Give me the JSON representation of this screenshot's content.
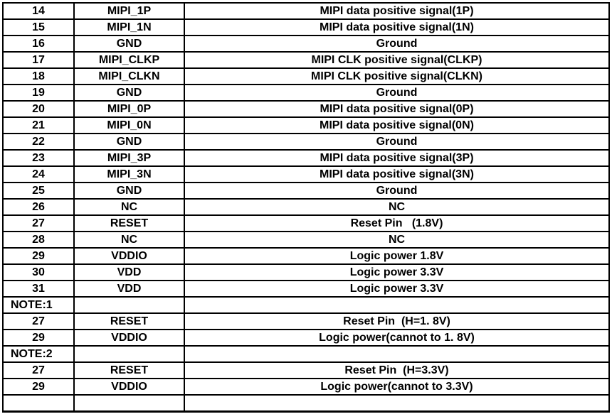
{
  "colors": {
    "text": "#000000",
    "border": "#000000",
    "background": "#ffffff"
  },
  "table": {
    "rows": [
      {
        "pin": "14",
        "signal": "MIPI_1P",
        "desc": "MIPI data positive signal(1P)"
      },
      {
        "pin": "15",
        "signal": "MIPI_1N",
        "desc": "MIPI data positive signal(1N)"
      },
      {
        "pin": "16",
        "signal": "GND",
        "desc": "Ground"
      },
      {
        "pin": "17",
        "signal": "MIPI_CLKP",
        "desc": "MIPI CLK positive signal(CLKP)"
      },
      {
        "pin": "18",
        "signal": "MIPI_CLKN",
        "desc": "MIPI CLK positive signal(CLKN)"
      },
      {
        "pin": "19",
        "signal": "GND",
        "desc": "Ground"
      },
      {
        "pin": "20",
        "signal": "MIPI_0P",
        "desc": "MIPI data positive signal(0P)"
      },
      {
        "pin": "21",
        "signal": "MIPI_0N",
        "desc": "MIPI data positive signal(0N)"
      },
      {
        "pin": "22",
        "signal": "GND",
        "desc": "Ground"
      },
      {
        "pin": "23",
        "signal": "MIPI_3P",
        "desc": "MIPI data positive signal(3P)"
      },
      {
        "pin": "24",
        "signal": "MIPI_3N",
        "desc": "MIPI data positive signal(3N)"
      },
      {
        "pin": "25",
        "signal": "GND",
        "desc": "Ground"
      },
      {
        "pin": "26",
        "signal": "NC",
        "desc": "NC"
      },
      {
        "pin": "27",
        "signal": "RESET",
        "desc": "Reset Pin   (1.8V)"
      },
      {
        "pin": "28",
        "signal": "NC",
        "desc": "NC"
      },
      {
        "pin": "29",
        "signal": "VDDIO",
        "desc": "Logic power 1.8V"
      },
      {
        "pin": "30",
        "signal": "VDD",
        "desc": "Logic power 3.3V"
      },
      {
        "pin": "31",
        "signal": "VDD",
        "desc": "Logic power 3.3V"
      },
      {
        "pin": "NOTE:1",
        "signal": "",
        "desc": ""
      },
      {
        "pin": "27",
        "signal": "RESET",
        "desc": "Reset Pin  (H=1. 8V)"
      },
      {
        "pin": "29",
        "signal": "VDDIO",
        "desc": "Logic power(cannot to 1. 8V)"
      },
      {
        "pin": "NOTE:2",
        "signal": "",
        "desc": ""
      },
      {
        "pin": "27",
        "signal": "RESET",
        "desc": "Reset Pin  (H=3.3V)"
      },
      {
        "pin": "29",
        "signal": "VDDIO",
        "desc": "Logic power(cannot to 3.3V)"
      },
      {
        "pin": "",
        "signal": "",
        "desc": ""
      }
    ]
  }
}
